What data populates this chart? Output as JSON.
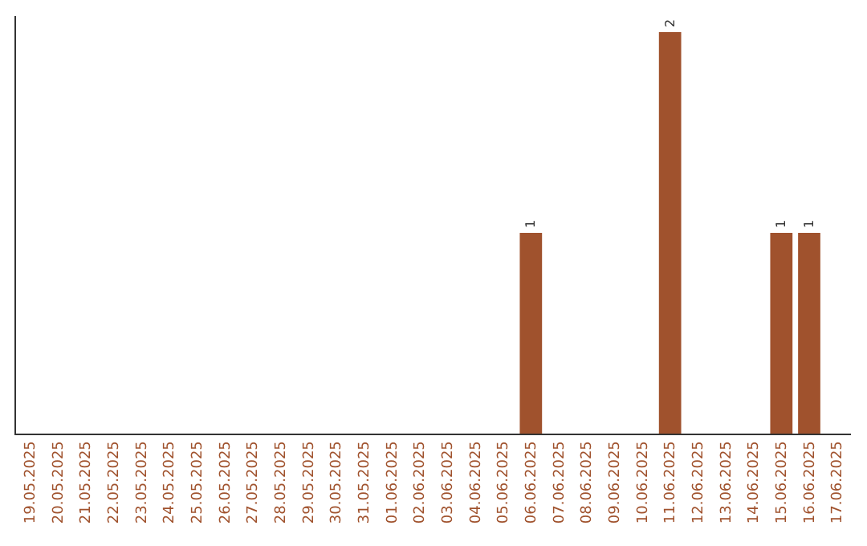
{
  "chart_data": {
    "type": "bar",
    "categories": [
      "19.05.2025",
      "20.05.2025",
      "21.05.2025",
      "22.05.2025",
      "23.05.2025",
      "24.05.2025",
      "25.05.2025",
      "26.05.2025",
      "27.05.2025",
      "28.05.2025",
      "29.05.2025",
      "30.05.2025",
      "31.05.2025",
      "01.06.2025",
      "02.06.2025",
      "03.06.2025",
      "04.06.2025",
      "05.06.2025",
      "06.06.2025",
      "07.06.2025",
      "08.06.2025",
      "09.06.2025",
      "10.06.2025",
      "11.06.2025",
      "12.06.2025",
      "13.06.2025",
      "14.06.2025",
      "15.06.2025",
      "16.06.2025",
      "17.06.2025"
    ],
    "values": [
      null,
      null,
      null,
      null,
      null,
      null,
      null,
      null,
      null,
      null,
      null,
      null,
      null,
      null,
      null,
      null,
      null,
      null,
      1,
      null,
      null,
      null,
      null,
      2,
      null,
      null,
      null,
      1,
      1,
      null
    ],
    "value_labels": [
      null,
      null,
      null,
      null,
      null,
      null,
      null,
      null,
      null,
      null,
      null,
      null,
      null,
      null,
      null,
      null,
      null,
      null,
      "1",
      null,
      null,
      null,
      null,
      "2",
      null,
      null,
      null,
      "1",
      "1",
      null
    ],
    "color": "#a0522d",
    "grid": false,
    "legend": false
  }
}
